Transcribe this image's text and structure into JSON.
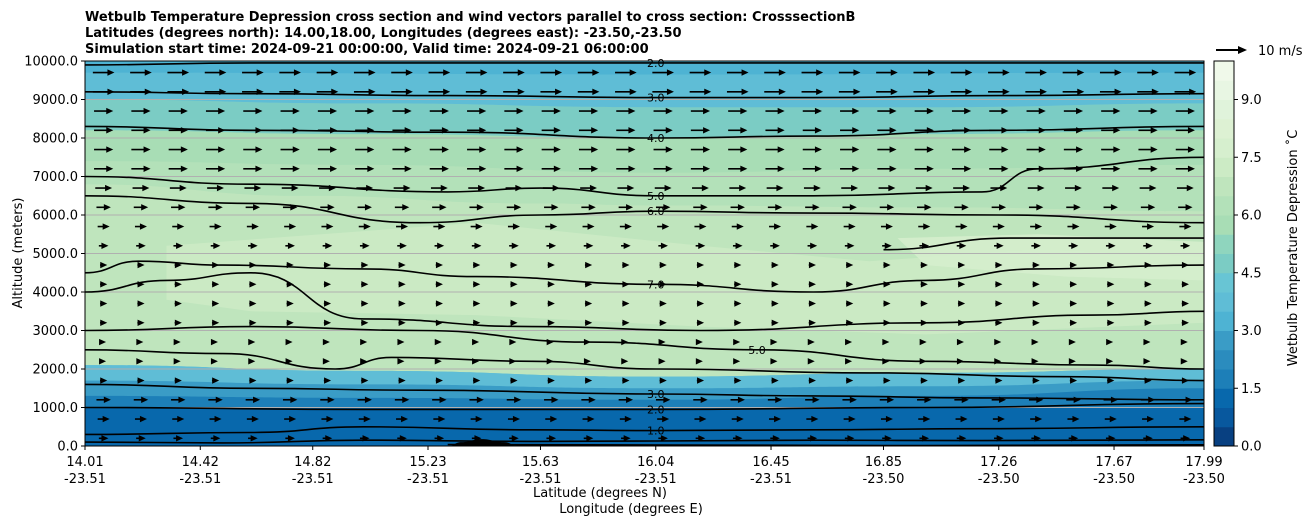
{
  "chart_data": {
    "type": "contour",
    "title_lines": [
      "Wetbulb Temperature Depression cross section and wind vectors parallel to cross section: CrosssectionB",
      "Latitudes (degrees north): 14.00,18.00, Longitudes (degrees east): -23.50,-23.50",
      "Simulation start time: 2024-09-21 00:00:00, Valid time: 2024-09-21 06:00:00"
    ],
    "ylabel": "Altitude (meters)",
    "xlabel_lat": "Latitude (degrees N)",
    "xlabel_lon": "Longitude (degrees E)",
    "ylim": [
      0,
      10000
    ],
    "y_ticks": [
      {
        "value": 0,
        "label": "0.0"
      },
      {
        "value": 1000,
        "label": "1000.0"
      },
      {
        "value": 2000,
        "label": "2000.0"
      },
      {
        "value": 3000,
        "label": "3000.0"
      },
      {
        "value": 4000,
        "label": "4000.0"
      },
      {
        "value": 5000,
        "label": "5000.0"
      },
      {
        "value": 6000,
        "label": "6000.0"
      },
      {
        "value": 7000,
        "label": "7000.0"
      },
      {
        "value": 8000,
        "label": "8000.0"
      },
      {
        "value": 9000,
        "label": "9000.0"
      },
      {
        "value": 10000,
        "label": "10000.0"
      }
    ],
    "xlim": [
      14.01,
      17.99
    ],
    "x_ticks": [
      {
        "lat": 14.01,
        "lat_label": "14.01",
        "lon_label": "-23.51"
      },
      {
        "lat": 14.42,
        "lat_label": "14.42",
        "lon_label": "-23.51"
      },
      {
        "lat": 14.82,
        "lat_label": "14.82",
        "lon_label": "-23.51"
      },
      {
        "lat": 15.23,
        "lat_label": "15.23",
        "lon_label": "-23.51"
      },
      {
        "lat": 15.63,
        "lat_label": "15.63",
        "lon_label": "-23.51"
      },
      {
        "lat": 16.04,
        "lat_label": "16.04",
        "lon_label": "-23.51"
      },
      {
        "lat": 16.45,
        "lat_label": "16.45",
        "lon_label": "-23.51"
      },
      {
        "lat": 16.85,
        "lat_label": "16.85",
        "lon_label": "-23.50"
      },
      {
        "lat": 17.26,
        "lat_label": "17.26",
        "lon_label": "-23.50"
      },
      {
        "lat": 17.67,
        "lat_label": "17.67",
        "lon_label": "-23.50"
      },
      {
        "lat": 17.99,
        "lat_label": "17.99",
        "lon_label": "-23.50"
      }
    ],
    "grid": "horizontal",
    "colorbar": {
      "label": "Wetbulb Temperature Depression ˚C",
      "range": [
        0.0,
        10.0
      ],
      "levels": [
        0.0,
        0.5,
        1.0,
        1.5,
        2.0,
        2.5,
        3.0,
        3.5,
        4.0,
        4.5,
        5.0,
        5.5,
        6.0,
        6.5,
        7.0,
        7.5,
        8.0,
        8.5,
        9.0,
        9.5,
        10.0
      ],
      "level_colors": [
        "#084081",
        "#08589e",
        "#0868ac",
        "#1d7fb8",
        "#2b8cbe",
        "#3a9cc6",
        "#4eb3d3",
        "#5fbdd6",
        "#68c5d4",
        "#7bccc4",
        "#8fd5be",
        "#a8ddb5",
        "#b3e1b9",
        "#bfe5bd",
        "#ccebc5",
        "#d6efce",
        "#ddf1d3",
        "#e0f3db",
        "#e8f6e3",
        "#f0f9ea",
        "#f7fcf0"
      ],
      "ticks": [
        {
          "value": 0.0,
          "label": "0.0"
        },
        {
          "value": 1.5,
          "label": "1.5"
        },
        {
          "value": 3.0,
          "label": "3.0"
        },
        {
          "value": 4.5,
          "label": "4.5"
        },
        {
          "value": 6.0,
          "label": "6.0"
        },
        {
          "value": 7.5,
          "label": "7.5"
        },
        {
          "value": 9.0,
          "label": "9.0"
        }
      ]
    },
    "quiver_key": {
      "label": "10 m/s",
      "speed": 10
    },
    "filled_bands": [
      {
        "value": 1.0,
        "top": [
          [
            14.01,
            1000
          ],
          [
            17.99,
            1000
          ]
        ]
      },
      {
        "value": 1.8,
        "top": [
          [
            14.01,
            1300
          ],
          [
            15.0,
            1250
          ],
          [
            16.04,
            1200
          ],
          [
            17.0,
            1300
          ],
          [
            17.99,
            1500
          ]
        ]
      },
      {
        "value": 2.6,
        "top": [
          [
            14.01,
            1700
          ],
          [
            15.0,
            1600
          ],
          [
            16.04,
            1500
          ],
          [
            17.0,
            1550
          ],
          [
            17.99,
            1700
          ]
        ]
      },
      {
        "value": 3.6,
        "top": [
          [
            14.01,
            2100
          ],
          [
            15.0,
            1950
          ],
          [
            16.04,
            1800
          ],
          [
            17.0,
            1900
          ],
          [
            17.99,
            2000
          ]
        ]
      },
      {
        "value": 6.2,
        "top": [
          [
            14.01,
            6800
          ],
          [
            14.8,
            6500
          ],
          [
            15.6,
            6300
          ],
          [
            16.04,
            6250
          ],
          [
            17.0,
            6200
          ],
          [
            17.99,
            6100
          ]
        ]
      },
      {
        "value": 5.5,
        "top": [
          [
            14.01,
            7400
          ],
          [
            15.0,
            7300
          ],
          [
            16.04,
            7100
          ],
          [
            17.0,
            7200
          ],
          [
            17.99,
            7300
          ]
        ]
      },
      {
        "value": 4.6,
        "top": [
          [
            14.01,
            8200
          ],
          [
            15.0,
            8100
          ],
          [
            16.04,
            8000
          ],
          [
            17.0,
            8100
          ],
          [
            17.99,
            8200
          ]
        ]
      },
      {
        "value": 3.8,
        "top": [
          [
            14.01,
            9000
          ],
          [
            15.0,
            8900
          ],
          [
            16.04,
            8800
          ],
          [
            17.0,
            8800
          ],
          [
            17.99,
            8900
          ]
        ]
      },
      {
        "value": 3.0,
        "top": [
          [
            14.01,
            9700
          ],
          [
            16.04,
            9650
          ],
          [
            17.99,
            9700
          ]
        ]
      },
      {
        "value": 2.4,
        "top": [
          [
            14.01,
            10000
          ],
          [
            17.99,
            10000
          ]
        ]
      }
    ],
    "lighter_regions": [
      {
        "value": 7.3,
        "points": [
          [
            14.3,
            5200
          ],
          [
            15.4,
            5800
          ],
          [
            16.2,
            5200
          ],
          [
            16.8,
            4800
          ],
          [
            17.4,
            5100
          ],
          [
            17.99,
            4900
          ],
          [
            17.99,
            3200
          ],
          [
            17.0,
            2900
          ],
          [
            16.2,
            3100
          ],
          [
            15.4,
            3400
          ],
          [
            14.6,
            3500
          ],
          [
            14.3,
            3800
          ]
        ]
      },
      {
        "value": 7.9,
        "points": [
          [
            16.9,
            5400
          ],
          [
            17.4,
            5500
          ],
          [
            17.99,
            5300
          ],
          [
            17.99,
            4300
          ],
          [
            17.5,
            4400
          ],
          [
            17.0,
            4700
          ]
        ]
      }
    ],
    "contours": [
      {
        "level": 1.0,
        "label": "1.0",
        "points": [
          [
            14.01,
            300
          ],
          [
            14.6,
            350
          ],
          [
            15.0,
            500
          ],
          [
            15.6,
            420
          ],
          [
            16.04,
            400
          ],
          [
            16.6,
            420
          ],
          [
            17.2,
            450
          ],
          [
            17.99,
            500
          ]
        ]
      },
      {
        "level": 2.0,
        "label": "2.0",
        "points": [
          [
            14.01,
            1000
          ],
          [
            15.0,
            950
          ],
          [
            16.04,
            950
          ],
          [
            17.0,
            1000
          ],
          [
            17.99,
            1100
          ]
        ]
      },
      {
        "level": 2.0,
        "label": "",
        "points": [
          [
            14.01,
            100
          ],
          [
            14.5,
            80
          ],
          [
            15.0,
            150
          ],
          [
            15.6,
            120
          ],
          [
            16.04,
            130
          ],
          [
            16.6,
            150
          ],
          [
            17.2,
            140
          ],
          [
            17.99,
            160
          ]
        ]
      },
      {
        "level": 3.0,
        "label": "3.0",
        "points": [
          [
            14.01,
            1600
          ],
          [
            14.6,
            1500
          ],
          [
            15.2,
            1450
          ],
          [
            16.04,
            1350
          ],
          [
            16.6,
            1300
          ],
          [
            17.2,
            1250
          ],
          [
            17.99,
            1200
          ]
        ]
      },
      {
        "level": 3.0,
        "label": "",
        "points": [
          [
            15.3,
            40
          ],
          [
            15.8,
            30
          ],
          [
            16.4,
            20
          ],
          [
            17.0,
            10
          ],
          [
            17.99,
            30
          ]
        ]
      },
      {
        "level": 4.0,
        "label": "",
        "points": [
          [
            14.01,
            2500
          ],
          [
            14.5,
            2400
          ],
          [
            14.9,
            2000
          ],
          [
            15.1,
            2300
          ],
          [
            15.6,
            2200
          ],
          [
            16.04,
            2000
          ],
          [
            16.8,
            1900
          ],
          [
            17.5,
            1800
          ],
          [
            17.99,
            1700
          ]
        ]
      },
      {
        "level": 5.0,
        "label": "5.0",
        "points": [
          [
            14.01,
            3000
          ],
          [
            14.6,
            3100
          ],
          [
            15.2,
            3000
          ],
          [
            15.8,
            2700
          ],
          [
            16.4,
            2500
          ],
          [
            17.0,
            2200
          ],
          [
            17.6,
            2100
          ],
          [
            17.99,
            2000
          ]
        ]
      },
      {
        "level": 6.0,
        "label": "",
        "points": [
          [
            14.01,
            4000
          ],
          [
            14.3,
            4300
          ],
          [
            14.6,
            4500
          ],
          [
            15.0,
            3300
          ],
          [
            15.6,
            3100
          ],
          [
            16.2,
            3000
          ],
          [
            17.0,
            3200
          ],
          [
            17.6,
            3400
          ],
          [
            17.99,
            3500
          ]
        ]
      },
      {
        "level": 7.0,
        "label": "7.0",
        "points": [
          [
            14.01,
            4500
          ],
          [
            14.2,
            4800
          ],
          [
            14.5,
            4700
          ],
          [
            15.0,
            4600
          ],
          [
            15.4,
            4400
          ],
          [
            16.04,
            4200
          ],
          [
            16.6,
            4000
          ],
          [
            17.0,
            4300
          ],
          [
            17.4,
            4600
          ],
          [
            17.99,
            4700
          ]
        ]
      },
      {
        "level": 6.0,
        "label": "6.0",
        "points": [
          [
            14.01,
            6500
          ],
          [
            14.6,
            6300
          ],
          [
            15.2,
            5800
          ],
          [
            15.63,
            6000
          ],
          [
            16.04,
            6100
          ],
          [
            16.6,
            6050
          ],
          [
            17.26,
            6000
          ],
          [
            17.99,
            5800
          ]
        ]
      },
      {
        "level": 7.0,
        "label": "",
        "points": [
          [
            16.85,
            5100
          ],
          [
            17.3,
            5400
          ],
          [
            17.99,
            5400
          ]
        ]
      },
      {
        "level": 5.0,
        "label": "5.0",
        "points": [
          [
            14.01,
            7000
          ],
          [
            14.6,
            6800
          ],
          [
            15.3,
            6600
          ],
          [
            15.63,
            6700
          ],
          [
            16.04,
            6500
          ],
          [
            16.6,
            6500
          ],
          [
            17.2,
            6600
          ],
          [
            17.4,
            7200
          ],
          [
            17.99,
            7500
          ]
        ]
      },
      {
        "level": 4.0,
        "label": "4.0",
        "points": [
          [
            14.01,
            8300
          ],
          [
            14.6,
            8200
          ],
          [
            15.3,
            8150
          ],
          [
            16.04,
            8000
          ],
          [
            16.6,
            8050
          ],
          [
            17.26,
            8200
          ],
          [
            17.99,
            8300
          ]
        ]
      },
      {
        "level": 3.0,
        "label": "3.0",
        "points": [
          [
            14.01,
            9200
          ],
          [
            14.6,
            9150
          ],
          [
            15.3,
            9100
          ],
          [
            16.04,
            9050
          ],
          [
            16.6,
            9050
          ],
          [
            17.26,
            9100
          ],
          [
            17.99,
            9150
          ]
        ]
      },
      {
        "level": 2.0,
        "label": "2.0",
        "points": [
          [
            14.01,
            9900
          ],
          [
            14.6,
            9950
          ],
          [
            15.3,
            9950
          ],
          [
            16.04,
            9950
          ],
          [
            16.6,
            9950
          ],
          [
            17.26,
            9950
          ],
          [
            17.99,
            9950
          ]
        ]
      }
    ],
    "terrain": [
      [
        15.3,
        0
      ],
      [
        15.35,
        100
      ],
      [
        15.42,
        180
      ],
      [
        15.5,
        100
      ],
      [
        15.55,
        0
      ]
    ],
    "wind_rows": [
      {
        "altitude": 9700,
        "speed": 9
      },
      {
        "altitude": 9200,
        "speed": 9
      },
      {
        "altitude": 8700,
        "speed": 8
      },
      {
        "altitude": 8200,
        "speed": 8
      },
      {
        "altitude": 7700,
        "speed": 8
      },
      {
        "altitude": 7200,
        "speed": 8
      },
      {
        "altitude": 6700,
        "speed": 7
      },
      {
        "altitude": 6200,
        "speed": 6
      },
      {
        "altitude": 5700,
        "speed": 5
      },
      {
        "altitude": 5200,
        "speed": 4
      },
      {
        "altitude": 4700,
        "speed": 3
      },
      {
        "altitude": 4200,
        "speed": 3
      },
      {
        "altitude": 3700,
        "speed": 3
      },
      {
        "altitude": 3200,
        "speed": 3
      },
      {
        "altitude": 2700,
        "speed": 2
      },
      {
        "altitude": 2200,
        "speed": 2
      },
      {
        "altitude": 1700,
        "speed": 3
      },
      {
        "altitude": 1200,
        "speed": 6
      },
      {
        "altitude": 700,
        "speed": 5
      },
      {
        "altitude": 200,
        "speed": 4
      }
    ],
    "wind_columns": 30
  }
}
